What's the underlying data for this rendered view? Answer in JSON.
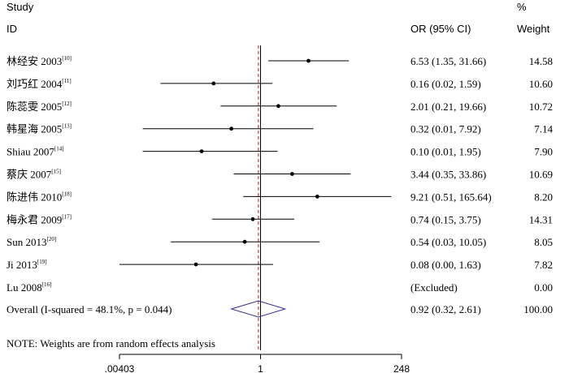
{
  "header": {
    "study_line1": "Study",
    "study_line2": "ID",
    "or_header": "OR (95% CI)",
    "pct_line1": "%",
    "pct_line2": "Weight"
  },
  "colors": {
    "ref_line": "#b22222",
    "overall_line": "#555555",
    "diamond": "#3d2b8f",
    "ink": "#000000"
  },
  "chart_data": {
    "type": "forest",
    "scale": "log",
    "null_value": 1,
    "overall_estimate": 0.92,
    "xlim": [
      0.00403,
      248
    ],
    "x_ticks": [
      {
        "value": 0.00403,
        "label": ".00403"
      },
      {
        "value": 1,
        "label": "1"
      },
      {
        "value": 248,
        "label": "248"
      }
    ],
    "studies": [
      {
        "name": "林经安 2003",
        "ref": "[10]",
        "or": 6.53,
        "lo": 1.35,
        "hi": 31.66,
        "ci_text": "6.53 (1.35, 31.66)",
        "weight": "14.58"
      },
      {
        "name": "刘巧红 2004",
        "ref": "[11]",
        "or": 0.16,
        "lo": 0.02,
        "hi": 1.59,
        "ci_text": "0.16 (0.02, 1.59)",
        "weight": "10.60"
      },
      {
        "name": "陈蕊雯 2005",
        "ref": "[12]",
        "or": 2.01,
        "lo": 0.21,
        "hi": 19.66,
        "ci_text": "2.01 (0.21, 19.66)",
        "weight": "10.72"
      },
      {
        "name": "韩星海 2005",
        "ref": "[13]",
        "or": 0.32,
        "lo": 0.01,
        "hi": 7.92,
        "ci_text": "0.32 (0.01, 7.92)",
        "weight": "7.14"
      },
      {
        "name": "Shiau 2007",
        "ref": "[14]",
        "or": 0.1,
        "lo": 0.01,
        "hi": 1.95,
        "ci_text": "0.10 (0.01, 1.95)",
        "weight": "7.90"
      },
      {
        "name": "蔡庆 2007",
        "ref": "[15]",
        "or": 3.44,
        "lo": 0.35,
        "hi": 33.86,
        "ci_text": "3.44 (0.35, 33.86)",
        "weight": "10.69"
      },
      {
        "name": "陈进伟 2010",
        "ref": "[18]",
        "or": 9.21,
        "lo": 0.51,
        "hi": 165.64,
        "ci_text": "9.21 (0.51, 165.64)",
        "weight": "8.20"
      },
      {
        "name": "梅永君 2009",
        "ref": "[17]",
        "or": 0.74,
        "lo": 0.15,
        "hi": 3.75,
        "ci_text": "0.74 (0.15, 3.75)",
        "weight": "14.31"
      },
      {
        "name": "Sun 2013",
        "ref": "[20]",
        "or": 0.54,
        "lo": 0.03,
        "hi": 10.05,
        "ci_text": "0.54 (0.03, 10.05)",
        "weight": "8.05"
      },
      {
        "name": "Ji 2013",
        "ref": "[19]",
        "or": 0.08,
        "lo": 0.0,
        "hi": 1.63,
        "ci_text": "0.08 (0.00, 1.63)",
        "weight": "7.82"
      },
      {
        "name": "Lu 2008",
        "ref": "[16]",
        "or": null,
        "lo": null,
        "hi": null,
        "ci_text": "(Excluded)",
        "weight": "0.00"
      }
    ],
    "overall": {
      "label": "Overall  (I-squared = 48.1%, p = 0.044)",
      "or": 0.92,
      "lo": 0.32,
      "hi": 2.61,
      "ci_text": "0.92 (0.32, 2.61)",
      "weight": "100.00"
    },
    "note": "NOTE: Weights are from random effects analysis"
  }
}
